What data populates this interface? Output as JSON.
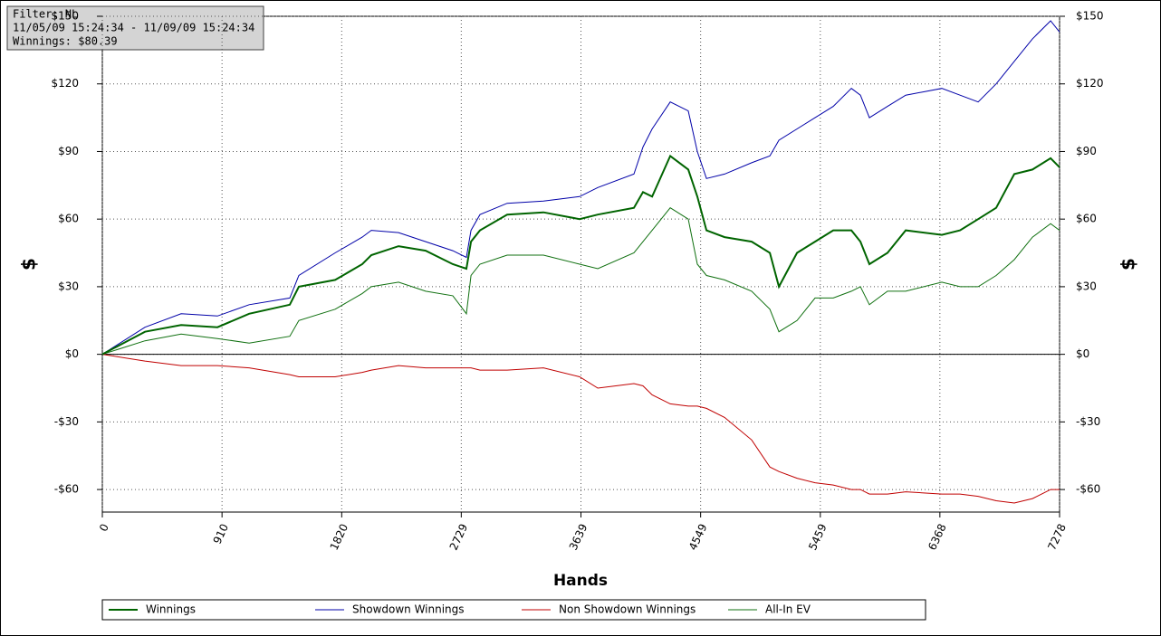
{
  "chart_data": {
    "type": "line",
    "annotations": [
      "Filter: NL",
      "11/05/09 15:24:34 - 11/09/09 15:24:34",
      "Winnings: $80.39"
    ],
    "x_label": "Hands",
    "y_label": "$",
    "x": [
      0,
      324,
      599,
      875,
      1116,
      1425,
      1494,
      1770,
      1976,
      2045,
      2252,
      2458,
      2665,
      2768,
      2803,
      2871,
      3078,
      3354,
      3629,
      3767,
      4042,
      4111,
      4180,
      4318,
      4455,
      4524,
      4593,
      4731,
      4937,
      5075,
      5144,
      5282,
      5419,
      5557,
      5695,
      5764,
      5832,
      5970,
      6108,
      6383,
      6521,
      6659,
      6796,
      6934,
      7072,
      7210,
      7278
    ],
    "series": [
      {
        "name": "Winnings",
        "color": "#006400",
        "width": 2,
        "values": [
          0,
          10,
          13,
          12,
          18,
          22,
          30,
          33,
          40,
          44,
          48,
          46,
          40,
          38,
          50,
          55,
          62,
          63,
          60,
          62,
          65,
          72,
          70,
          88,
          82,
          70,
          55,
          52,
          50,
          45,
          30,
          45,
          50,
          55,
          55,
          50,
          40,
          45,
          55,
          53,
          55,
          60,
          65,
          80,
          82,
          87,
          83
        ]
      },
      {
        "name": "Showdown Winnings",
        "color": "#0000a8",
        "width": 1,
        "values": [
          0,
          12,
          18,
          17,
          22,
          25,
          35,
          45,
          52,
          55,
          54,
          50,
          46,
          43,
          55,
          62,
          67,
          68,
          70,
          74,
          80,
          92,
          100,
          112,
          108,
          90,
          78,
          80,
          85,
          88,
          95,
          100,
          105,
          110,
          118,
          115,
          105,
          110,
          115,
          118,
          115,
          112,
          120,
          130,
          140,
          148,
          143
        ]
      },
      {
        "name": "Non Showdown Winnings",
        "color": "#c00000",
        "width": 1,
        "values": [
          0,
          -3,
          -5,
          -5,
          -6,
          -9,
          -10,
          -10,
          -8,
          -7,
          -5,
          -6,
          -6,
          -6,
          -6,
          -7,
          -7,
          -6,
          -10,
          -15,
          -13,
          -14,
          -18,
          -22,
          -23,
          -23,
          -24,
          -28,
          -38,
          -50,
          -52,
          -55,
          -57,
          -58,
          -60,
          -60,
          -62,
          -62,
          -61,
          -62,
          -62,
          -63,
          -65,
          -66,
          -64,
          -60,
          -60
        ]
      },
      {
        "name": "All-In EV",
        "color": "#107010",
        "width": 1,
        "values": [
          0,
          6,
          9,
          7,
          5,
          8,
          15,
          20,
          27,
          30,
          32,
          28,
          26,
          18,
          35,
          40,
          44,
          44,
          40,
          38,
          45,
          50,
          55,
          65,
          60,
          40,
          35,
          33,
          28,
          20,
          10,
          15,
          25,
          25,
          28,
          30,
          22,
          28,
          28,
          32,
          30,
          30,
          35,
          42,
          52,
          58,
          55
        ]
      }
    ],
    "xlim": [
      0,
      7278
    ],
    "xticks": [
      0,
      910,
      1820,
      2729,
      3639,
      4549,
      5459,
      6368,
      7278
    ],
    "ylim": [
      -70,
      150
    ],
    "yticks": [
      {
        "value": -60,
        "label": "-$60"
      },
      {
        "value": -30,
        "label": "-$30"
      },
      {
        "value": 0,
        "label": "$0"
      },
      {
        "value": 30,
        "label": "$30"
      },
      {
        "value": 60,
        "label": "$60"
      },
      {
        "value": 90,
        "label": "$90"
      },
      {
        "value": 120,
        "label": "$120"
      },
      {
        "value": 150,
        "label": "$150"
      }
    ],
    "grid": true
  }
}
